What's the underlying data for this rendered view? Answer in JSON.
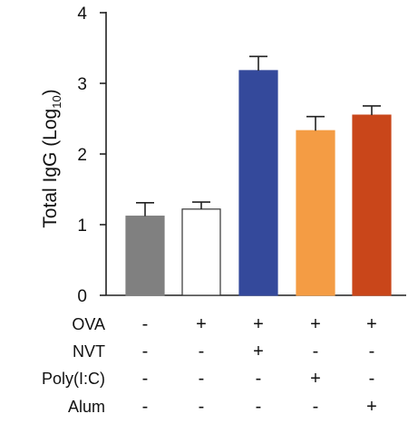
{
  "chart_data": {
    "type": "bar",
    "ylabel_main": "Total IgG (Log",
    "ylabel_sub": "10",
    "ylabel_close": ")",
    "ylim": [
      0,
      4
    ],
    "yticks": [
      "0",
      "1",
      "2",
      "3",
      "4"
    ],
    "grid": false,
    "legend": "none",
    "bars": [
      {
        "value": 1.12,
        "error": 0.19,
        "fill": "#808080",
        "stroke": "#808080"
      },
      {
        "value": 1.22,
        "error": 0.1,
        "fill": "#ffffff",
        "stroke": "#333333"
      },
      {
        "value": 3.18,
        "error": 0.2,
        "fill": "#34499b",
        "stroke": "#34499b"
      },
      {
        "value": 2.33,
        "error": 0.2,
        "fill": "#f49c44",
        "stroke": "#f49c44"
      },
      {
        "value": 2.55,
        "error": 0.13,
        "fill": "#c9461a",
        "stroke": "#c9461a"
      }
    ],
    "conditions": [
      {
        "label": "OVA",
        "values": [
          "-",
          "+",
          "+",
          "+",
          "+"
        ]
      },
      {
        "label": "NVT",
        "values": [
          "-",
          "-",
          "+",
          "-",
          "-"
        ]
      },
      {
        "label": "Poly(I:C)",
        "values": [
          "-",
          "-",
          "-",
          "+",
          "-"
        ]
      },
      {
        "label": "Alum",
        "values": [
          "-",
          "-",
          "-",
          "-",
          "+"
        ]
      }
    ]
  }
}
